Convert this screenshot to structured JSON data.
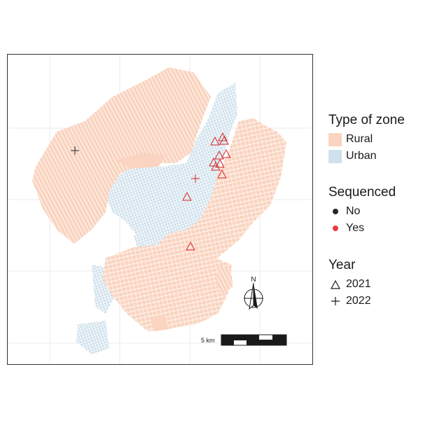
{
  "legend": {
    "zone": {
      "title": "Type of zone",
      "items": [
        {
          "label": "Rural",
          "color": "#fad4c0"
        },
        {
          "label": "Urban",
          "color": "#cfe1ec"
        }
      ]
    },
    "sequenced": {
      "title": "Sequenced",
      "items": [
        {
          "label": "No",
          "color": "#262626"
        },
        {
          "label": "Yes",
          "color": "#ee3b3b"
        }
      ]
    },
    "year": {
      "title": "Year",
      "items": [
        {
          "label": "2021",
          "symbol": "open-triangle"
        },
        {
          "label": "2022",
          "symbol": "plus"
        }
      ]
    }
  },
  "map": {
    "scale_bar_label": "5 km",
    "north_arrow_label": "N",
    "marker_colors": {
      "sequenced_no": "#262626",
      "sequenced_yes": "#d62728"
    }
  }
}
